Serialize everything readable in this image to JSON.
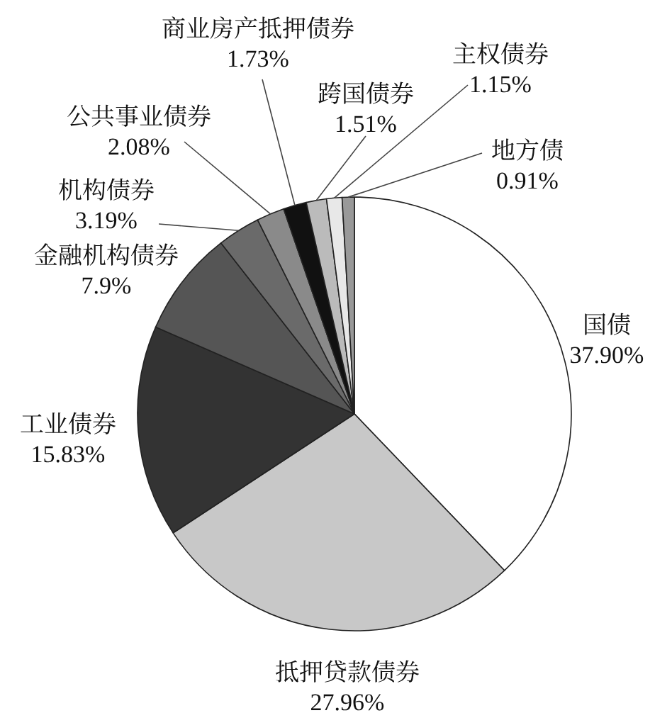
{
  "chart_data": {
    "type": "pie",
    "categories": [
      "国债",
      "抵押贷款债券",
      "工业债券",
      "金融机构债券",
      "机构债券",
      "公共事业债券",
      "商业房产抵押债券",
      "跨国债券",
      "主权债券",
      "地方债"
    ],
    "values": [
      37.9,
      27.96,
      15.83,
      7.9,
      3.19,
      2.08,
      1.73,
      1.51,
      1.15,
      0.91
    ],
    "value_labels": [
      "37.90%",
      "27.96%",
      "15.83%",
      "7.9%",
      "3.19%",
      "2.08%",
      "1.73%",
      "1.51%",
      "1.15%",
      "0.91%"
    ],
    "colors": [
      "#ffffff",
      "#c8c8c8",
      "#333333",
      "#555555",
      "#6a6a6a",
      "#8a8a8a",
      "#111111",
      "#bbbbbb",
      "#e8e8e8",
      "#999999"
    ]
  }
}
